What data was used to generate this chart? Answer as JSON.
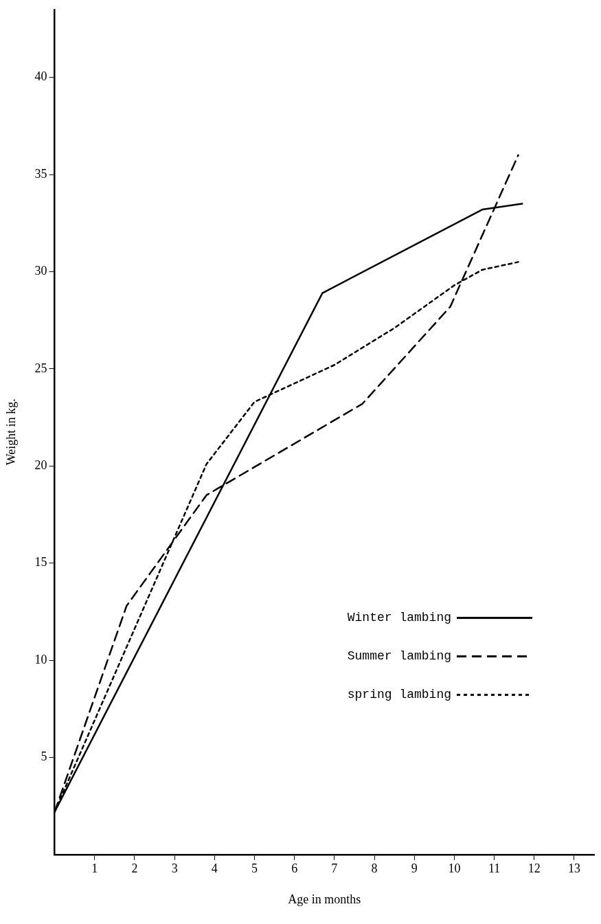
{
  "chart_data": {
    "type": "line",
    "xlabel": "Age in months",
    "ylabel": "Weight in kg.",
    "xlim": [
      0,
      13.5
    ],
    "xticks": [
      1,
      2,
      3,
      4,
      5,
      6,
      7,
      8,
      9,
      10,
      11,
      12,
      13
    ],
    "ylim": [
      0,
      43.5
    ],
    "yticks": [
      5,
      10,
      15,
      20,
      25,
      30,
      35,
      40
    ],
    "grid": false,
    "legend": "right",
    "marker": "none",
    "series": [
      {
        "name": "Winter lambing",
        "color": "#000000",
        "line_style": "solid",
        "x": [
          0,
          6.7,
          10.7,
          11.7
        ],
        "values": [
          2.2,
          28.9,
          33.2,
          33.5
        ]
      },
      {
        "name": "Summer lambing",
        "color": "#000000",
        "line_style": "dashed",
        "x": [
          0,
          1.8,
          3.8,
          7.7,
          9.9,
          11.6
        ],
        "values": [
          2.2,
          12.8,
          18.5,
          23.2,
          28.2,
          36
        ]
      },
      {
        "name": "spring lambing",
        "color": "#000000",
        "line_style": "dotted",
        "x": [
          0,
          3.8,
          5,
          7,
          8.5,
          10,
          10.7,
          11.6
        ],
        "values": [
          2.2,
          20.1,
          23.3,
          25.2,
          27.1,
          29.3,
          30.1,
          30.5
        ]
      }
    ]
  }
}
